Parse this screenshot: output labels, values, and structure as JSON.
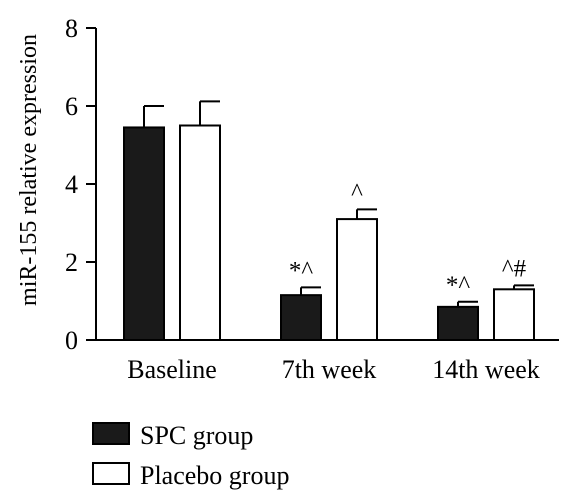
{
  "chart_data": {
    "type": "bar",
    "title": "",
    "xlabel": "",
    "ylabel": "miR-155 relative expression",
    "ylim": [
      0,
      8
    ],
    "yticks": [
      0,
      2,
      4,
      6,
      8
    ],
    "categories": [
      "Baseline",
      "7th week",
      "14th week"
    ],
    "series": [
      {
        "name": "SPC group",
        "fill": "#1a1a1a",
        "values": [
          5.45,
          1.15,
          0.85
        ],
        "errors": [
          0.55,
          0.2,
          0.13
        ],
        "annotations": [
          "",
          "*^",
          "*^"
        ]
      },
      {
        "name": "Placebo group",
        "fill": "#ffffff",
        "values": [
          5.5,
          3.1,
          1.3
        ],
        "errors": [
          0.62,
          0.25,
          0.1
        ],
        "annotations": [
          "",
          "^",
          "^#"
        ]
      }
    ],
    "legend_position": "bottom-left",
    "grid": false
  }
}
